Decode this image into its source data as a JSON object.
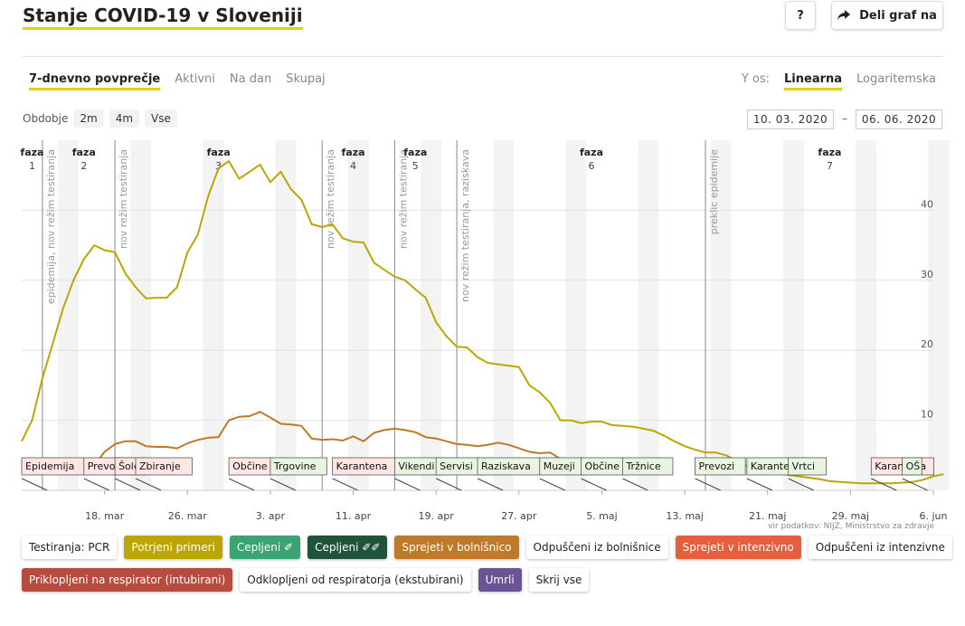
{
  "header": {
    "title": "Stanje COVID-19 v Sloveniji",
    "help_label": "?",
    "share_label": "Deli graf na"
  },
  "tabs": [
    {
      "label": "7-dnevno povprečje",
      "active": true
    },
    {
      "label": "Aktivni",
      "active": false
    },
    {
      "label": "Na dan",
      "active": false
    },
    {
      "label": "Skupaj",
      "active": false
    }
  ],
  "yscale": {
    "label": "Y os:",
    "options": [
      {
        "label": "Linearna",
        "active": true
      },
      {
        "label": "Logaritemska",
        "active": false
      }
    ]
  },
  "period": {
    "label": "Obdobje",
    "buttons": [
      "2m",
      "4m",
      "Vse"
    ],
    "from": "10. 03. 2020",
    "sep": "–",
    "to": "06. 06. 2020"
  },
  "source": "vir podatkov: NIJZ, Ministrstvo za zdravje",
  "legend": [
    {
      "label": "Testiranja: PCR",
      "bg": "#ffffff",
      "color": "#222222"
    },
    {
      "label": "Potrjeni primeri",
      "bg": "#bda506",
      "color": "#ffffff"
    },
    {
      "label": "Cepljeni ✐",
      "bg": "#3ba272",
      "color": "#ffffff"
    },
    {
      "label": "Cepljeni ✐✐",
      "bg": "#20543a",
      "color": "#ffffff"
    },
    {
      "label": "Sprejeti v bolnišnico",
      "bg": "#be7a2a",
      "color": "#ffffff"
    },
    {
      "label": "Odpuščeni iz bolnišnice",
      "bg": "#ffffff",
      "color": "#222222"
    },
    {
      "label": "Sprejeti v intenzivno",
      "bg": "#e55f3f",
      "color": "#ffffff"
    },
    {
      "label": "Odpuščeni iz intenzivne",
      "bg": "#ffffff",
      "color": "#222222"
    },
    {
      "label": "Priklopljeni na respirator (intubirani)",
      "bg": "#b74b3d",
      "color": "#ffffff"
    },
    {
      "label": "Odklopljeni od respiratorja (ekstubirani)",
      "bg": "#ffffff",
      "color": "#222222"
    },
    {
      "label": "Umrli",
      "bg": "#6b5494",
      "color": "#ffffff"
    },
    {
      "label": "Skrij vse",
      "bg": "#ffffff",
      "color": "#222222"
    }
  ],
  "chart_data": {
    "type": "line",
    "x_start": "2020-03-10",
    "x_end": "2020-06-06",
    "x_ticks": [
      "18. mar",
      "26. mar",
      "3. apr",
      "11. apr",
      "19. apr",
      "27. apr",
      "5. maj",
      "13. maj",
      "21. maj",
      "29. maj",
      "6. jun"
    ],
    "y_ticks": [
      10,
      20,
      30,
      40
    ],
    "ylim": [
      0,
      50
    ],
    "grid": true,
    "phases": [
      {
        "label": [
          "faza",
          "1"
        ],
        "date": "2020-03-11"
      },
      {
        "label": [
          "faza",
          "2"
        ],
        "date": "2020-03-16"
      },
      {
        "label": [
          "faza",
          "3"
        ],
        "date": "2020-03-29"
      },
      {
        "label": [
          "faza",
          "4"
        ],
        "date": "2020-04-11"
      },
      {
        "label": [
          "faza",
          "5"
        ],
        "date": "2020-04-17"
      },
      {
        "label": [
          "faza",
          "6"
        ],
        "date": "2020-05-04"
      },
      {
        "label": [
          "faza",
          "7"
        ],
        "date": "2020-05-27"
      }
    ],
    "events": [
      {
        "date": "2020-03-12",
        "label": "epidemija, nov režim testiranja"
      },
      {
        "date": "2020-03-19",
        "label": "nov režim testiranja"
      },
      {
        "date": "2020-04-08",
        "label": "nov režim testiranja"
      },
      {
        "date": "2020-04-15",
        "label": "nov režim testiranja"
      },
      {
        "date": "2020-04-21",
        "label": "nov režim testiranja, raziskava"
      },
      {
        "date": "2020-05-15",
        "label": "preklic epidemije"
      }
    ],
    "measures": [
      {
        "label": "Epidemija",
        "date": "2020-03-10",
        "type": "close"
      },
      {
        "label": "Prevozi",
        "date": "2020-03-16",
        "type": "close"
      },
      {
        "label": "Šole",
        "date": "2020-03-19",
        "type": "close"
      },
      {
        "label": "Zbiranje",
        "date": "2020-03-21",
        "type": "close"
      },
      {
        "label": "Občine",
        "date": "2020-03-30",
        "type": "close"
      },
      {
        "label": "Trgovine",
        "date": "2020-04-03",
        "type": "open"
      },
      {
        "label": "Karantena",
        "date": "2020-04-09",
        "type": "close"
      },
      {
        "label": "Vikendi",
        "date": "2020-04-15",
        "type": "open"
      },
      {
        "label": "Servisi",
        "date": "2020-04-19",
        "type": "open"
      },
      {
        "label": "Raziskava",
        "date": "2020-04-23",
        "type": "open"
      },
      {
        "label": "Muzeji",
        "date": "2020-04-29",
        "type": "open"
      },
      {
        "label": "Občine",
        "date": "2020-05-03",
        "type": "open"
      },
      {
        "label": "Tržnice",
        "date": "2020-05-07",
        "type": "open"
      },
      {
        "label": "Prevozi",
        "date": "2020-05-14",
        "type": "open"
      },
      {
        "label": "Karantena",
        "date": "2020-05-19",
        "type": "open"
      },
      {
        "label": "Vrtci",
        "date": "2020-05-23",
        "type": "open"
      },
      {
        "label": "Karantena",
        "date": "2020-05-31",
        "type": "close"
      },
      {
        "label": "OŠ",
        "date": "2020-06-03",
        "type": "open"
      }
    ],
    "series": [
      {
        "name": "Potrjeni primeri",
        "color": "#bda506",
        "values": [
          7,
          10,
          16,
          21,
          26,
          30,
          33,
          35,
          34.3,
          34,
          31,
          29,
          27.4,
          27.5,
          27.5,
          29,
          34,
          36.5,
          42,
          46,
          47,
          44.5,
          45.5,
          46.5,
          44,
          45.5,
          43,
          41.5,
          38,
          37.6,
          38,
          36,
          35.5,
          35.4,
          32.5,
          31.5,
          30.5,
          30,
          28.7,
          27.5,
          24,
          22,
          20.5,
          20.4,
          19,
          18.2,
          18,
          17.8,
          17.6,
          15,
          14,
          12.5,
          10,
          10,
          9.6,
          9.8,
          9.8,
          9.3,
          9.2,
          9.1,
          8.8,
          8.5,
          7.8,
          7,
          6.3,
          5.8,
          5.4,
          5.4,
          5,
          4.2,
          3.5,
          3,
          2.7,
          2.4,
          2.2,
          2,
          1.8,
          1.6,
          1.3,
          1.2,
          1.1,
          1,
          1,
          1,
          1,
          1.1,
          1.2,
          1.5,
          2,
          2.3
        ]
      },
      {
        "name": "Sprejeti v bolnišnico",
        "color": "#be7a2a",
        "values": [
          null,
          null,
          null,
          null,
          null,
          null,
          null,
          3.5,
          5.5,
          6.6,
          7,
          7,
          6.3,
          6.2,
          6.2,
          6,
          6.7,
          7.2,
          7.5,
          7.6,
          10,
          10.5,
          10.6,
          11.2,
          10.4,
          9.5,
          9.4,
          9.2,
          7.4,
          7.2,
          7.3,
          7.1,
          7.7,
          7,
          8.2,
          8.6,
          8.8,
          8.6,
          8.3,
          7.6,
          7.4,
          7,
          6.6,
          6.5,
          6.3,
          6.5,
          6.8,
          6.5,
          6,
          5.5,
          5.3,
          5.4,
          4.5,
          2.3
        ]
      },
      {
        "name": "Odpuščeni iz bolnišnice",
        "color": "#999999",
        "values": []
      },
      {
        "name": "Sprejeti v intenzivno",
        "color": "#e55f3f",
        "values": []
      },
      {
        "name": "Umrli",
        "color": "#6b5494",
        "values": []
      }
    ]
  }
}
